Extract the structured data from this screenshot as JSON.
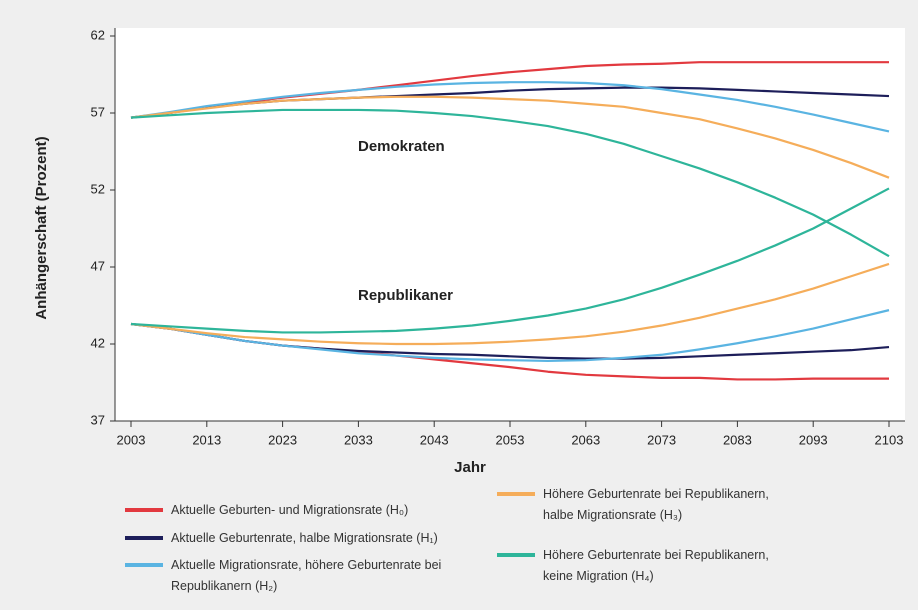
{
  "chart_data": {
    "type": "line",
    "xlabel": "Jahr",
    "ylabel": "Anhängerschaft (Prozent)",
    "annotations": [
      "Demokraten",
      "Republikaner"
    ],
    "x": [
      2003,
      2008,
      2013,
      2018,
      2023,
      2028,
      2033,
      2038,
      2043,
      2048,
      2053,
      2058,
      2063,
      2068,
      2073,
      2078,
      2083,
      2088,
      2093,
      2098,
      2103
    ],
    "xlim": [
      2003,
      2103
    ],
    "xticks": [
      2003,
      2013,
      2023,
      2033,
      2043,
      2053,
      2063,
      2073,
      2083,
      2093,
      2103
    ],
    "ylim": [
      37,
      62
    ],
    "yticks": [
      37,
      42,
      47,
      52,
      57,
      62
    ],
    "series": [
      {
        "name": "Aktuelle Geburten- und Migrationsrate (H₀)",
        "color": "#e2393f",
        "dem_values": [
          56.7,
          57.0,
          57.4,
          57.7,
          58.0,
          58.25,
          58.5,
          58.8,
          59.1,
          59.4,
          59.65,
          59.85,
          60.05,
          60.15,
          60.2,
          60.3,
          60.3,
          60.3,
          60.3,
          60.3,
          60.3
        ],
        "rep_values": [
          43.3,
          43.0,
          42.6,
          42.2,
          41.9,
          41.7,
          41.5,
          41.25,
          41.0,
          40.75,
          40.5,
          40.2,
          40.0,
          39.9,
          39.8,
          39.8,
          39.7,
          39.7,
          39.75,
          39.75,
          39.75
        ]
      },
      {
        "name": "Aktuelle Geburtenrate,  halbe Migrationsrate (H₁)",
        "color": "#1d1e5a",
        "dem_values": [
          56.7,
          57.0,
          57.35,
          57.6,
          57.8,
          57.9,
          58.0,
          58.1,
          58.2,
          58.3,
          58.45,
          58.55,
          58.6,
          58.65,
          58.65,
          58.6,
          58.5,
          58.4,
          58.3,
          58.2,
          58.1
        ],
        "rep_values": [
          43.3,
          43.0,
          42.6,
          42.2,
          41.9,
          41.7,
          41.55,
          41.45,
          41.35,
          41.3,
          41.2,
          41.1,
          41.05,
          41.05,
          41.1,
          41.2,
          41.3,
          41.4,
          41.5,
          41.6,
          41.8
        ]
      },
      {
        "name": "Aktuelle Migrationsrate, höhere Geburtenrate bei Republikanern (H₂)",
        "color": "#5ab4e2",
        "dem_values": [
          56.7,
          57.05,
          57.45,
          57.75,
          58.05,
          58.3,
          58.5,
          58.7,
          58.85,
          58.95,
          59.0,
          59.0,
          58.95,
          58.8,
          58.55,
          58.2,
          57.85,
          57.4,
          56.9,
          56.35,
          55.8
        ],
        "rep_values": [
          43.3,
          43.0,
          42.6,
          42.2,
          41.9,
          41.65,
          41.4,
          41.25,
          41.1,
          41.0,
          40.95,
          40.9,
          40.95,
          41.1,
          41.3,
          41.65,
          42.05,
          42.5,
          43.0,
          43.6,
          44.2
        ]
      },
      {
        "name": "Höhere Geburtenrate bei Republikanern, halbe Migrationsrate (H₃)",
        "color": "#f5ad5a",
        "dem_values": [
          56.7,
          57.0,
          57.3,
          57.6,
          57.8,
          57.9,
          58.0,
          58.05,
          58.05,
          58.0,
          57.9,
          57.8,
          57.6,
          57.4,
          57.0,
          56.6,
          56.0,
          55.35,
          54.6,
          53.75,
          52.8
        ],
        "rep_values": [
          43.3,
          43.0,
          42.7,
          42.45,
          42.3,
          42.15,
          42.05,
          42.0,
          42.0,
          42.05,
          42.15,
          42.3,
          42.5,
          42.8,
          43.2,
          43.7,
          44.3,
          44.9,
          45.6,
          46.4,
          47.2
        ]
      },
      {
        "name": "Höhere Geburtenrate bei Republikanern, keine Migration (H₄)",
        "color": "#2eb59a",
        "dem_values": [
          56.7,
          56.85,
          57.0,
          57.1,
          57.2,
          57.2,
          57.2,
          57.15,
          57.0,
          56.8,
          56.5,
          56.15,
          55.65,
          55.0,
          54.2,
          53.4,
          52.5,
          51.5,
          50.4,
          49.1,
          47.7
        ],
        "rep_values": [
          43.3,
          43.15,
          43.0,
          42.85,
          42.75,
          42.75,
          42.8,
          42.85,
          43.0,
          43.2,
          43.5,
          43.85,
          44.3,
          44.9,
          45.65,
          46.5,
          47.4,
          48.4,
          49.5,
          50.8,
          52.1
        ]
      }
    ]
  }
}
